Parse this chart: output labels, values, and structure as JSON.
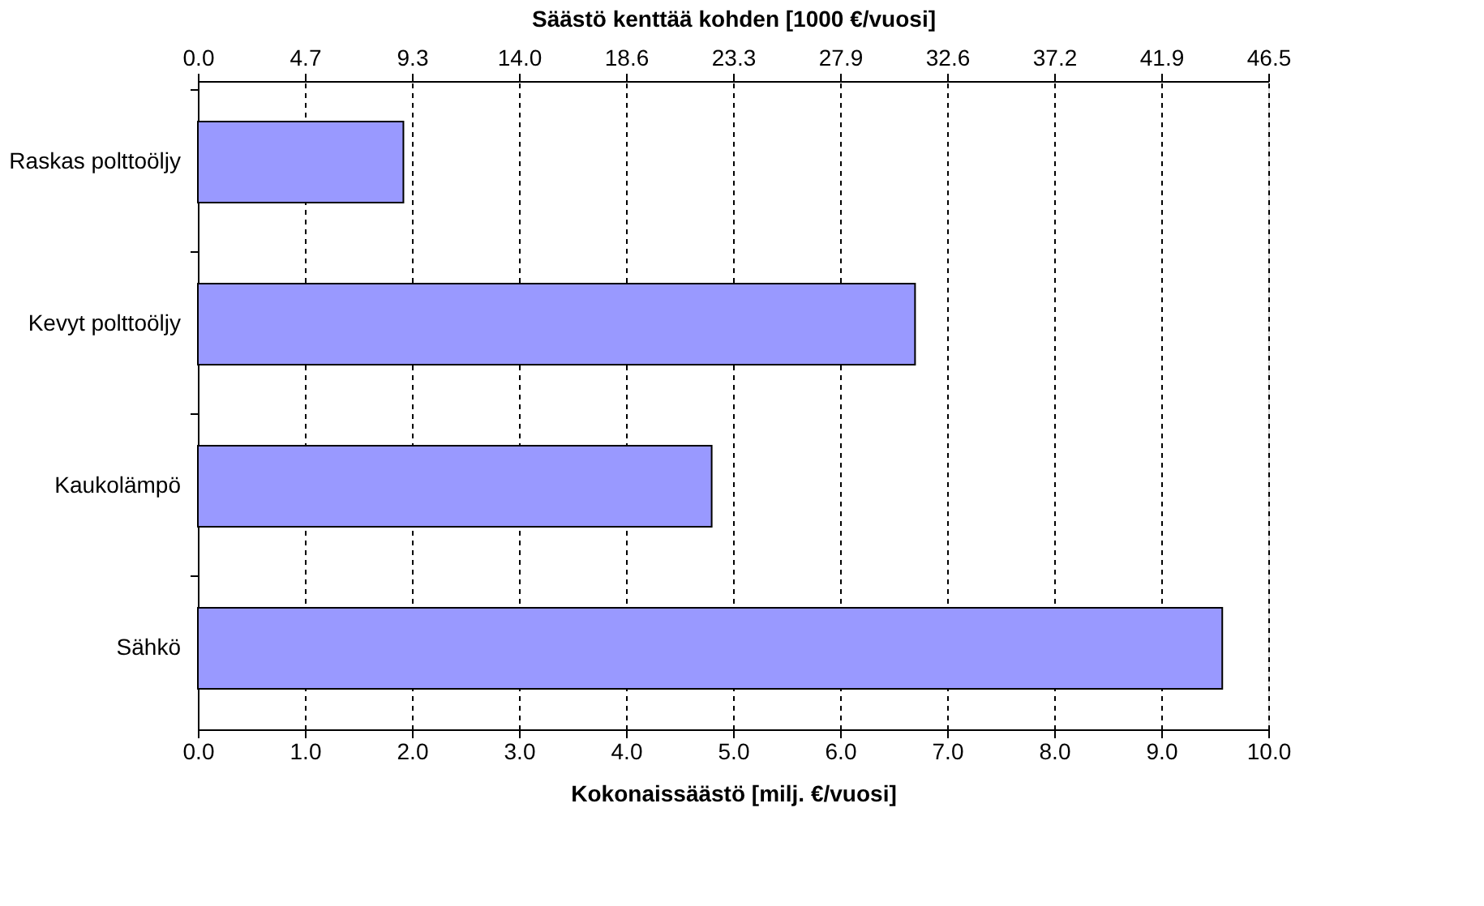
{
  "chart_data": {
    "type": "bar",
    "orientation": "horizontal",
    "categories": [
      "Raskas polttoöljy",
      "Kevyt polttoöljy",
      "Kaukolämpö",
      "Sähkö"
    ],
    "values": [
      1.92,
      6.7,
      4.8,
      9.57
    ],
    "color": "#9999ff",
    "xlabel": "Kokonaissäästö  [milj. €/vuosi]",
    "x2label": "Säästö kenttää kohden [1000 €/vuosi]",
    "xlim": [
      0,
      10
    ],
    "xticks": [
      {
        "value": 0,
        "label": "0.0"
      },
      {
        "value": 1,
        "label": "1.0"
      },
      {
        "value": 2,
        "label": "2.0"
      },
      {
        "value": 3,
        "label": "3.0"
      },
      {
        "value": 4,
        "label": "4.0"
      },
      {
        "value": 5,
        "label": "5.0"
      },
      {
        "value": 6,
        "label": "6.0"
      },
      {
        "value": 7,
        "label": "7.0"
      },
      {
        "value": 8,
        "label": "8.0"
      },
      {
        "value": 9,
        "label": "9.0"
      },
      {
        "value": 10,
        "label": "10.0"
      }
    ],
    "x2lim": [
      0,
      46.5
    ],
    "x2ticks": [
      {
        "value": 0,
        "label": "0.0"
      },
      {
        "value": 4.65,
        "label": "4.7"
      },
      {
        "value": 9.3,
        "label": "9.3"
      },
      {
        "value": 13.95,
        "label": "14.0"
      },
      {
        "value": 18.6,
        "label": "18.6"
      },
      {
        "value": 23.25,
        "label": "23.3"
      },
      {
        "value": 27.9,
        "label": "27.9"
      },
      {
        "value": 32.55,
        "label": "32.6"
      },
      {
        "value": 37.2,
        "label": "37.2"
      },
      {
        "value": 41.85,
        "label": "41.9"
      },
      {
        "value": 46.5,
        "label": "46.5"
      }
    ],
    "grid": "x"
  }
}
